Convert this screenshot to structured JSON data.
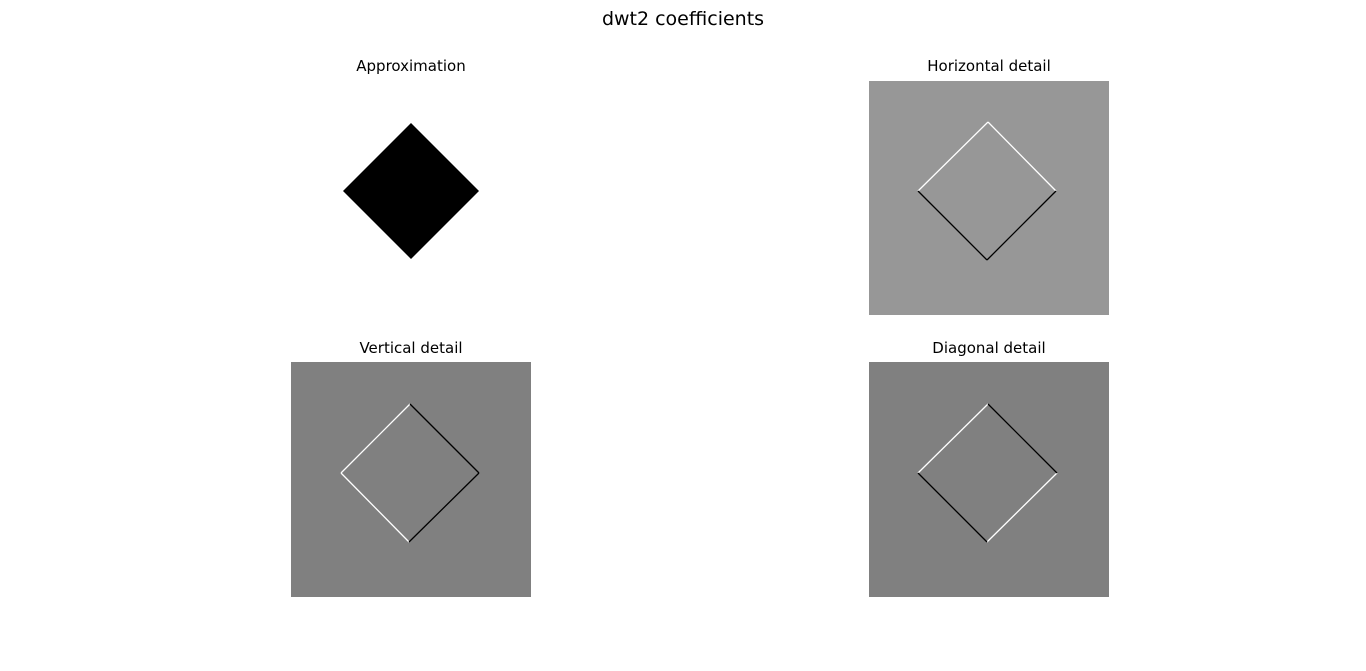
{
  "figure": {
    "title": "dwt2 coefficients"
  },
  "colors": {
    "background": "#ffffff",
    "approximation_fill": "#ffffff",
    "approximation_shape": "#000000",
    "horizontal_fill": "#979797",
    "vertical_fill": "#808080",
    "diagonal_fill": "#808080",
    "edge_light": "#ffffff",
    "edge_dark": "#000000"
  },
  "chart_data": [
    {
      "type": "heatmap",
      "title": "Approximation",
      "colormap": "gray",
      "axes": "off",
      "description_shape": "diamond",
      "background_level": "white",
      "shape_level": "black"
    },
    {
      "type": "heatmap",
      "title": "Horizontal detail",
      "colormap": "gray",
      "axes": "off",
      "description_shape": "diamond-edges",
      "background_level": "gray",
      "upper_edges": "light",
      "lower_edges": "dark"
    },
    {
      "type": "heatmap",
      "title": "Vertical detail",
      "colormap": "gray",
      "axes": "off",
      "description_shape": "diamond-edges",
      "background_level": "gray",
      "left_edges": "light",
      "right_edges": "dark"
    },
    {
      "type": "heatmap",
      "title": "Diagonal detail",
      "colormap": "gray",
      "axes": "off",
      "description_shape": "diamond-edges",
      "background_level": "gray",
      "upper_left_lower_right_edges": "dark",
      "lower_left_upper_right_edges": "light"
    }
  ]
}
